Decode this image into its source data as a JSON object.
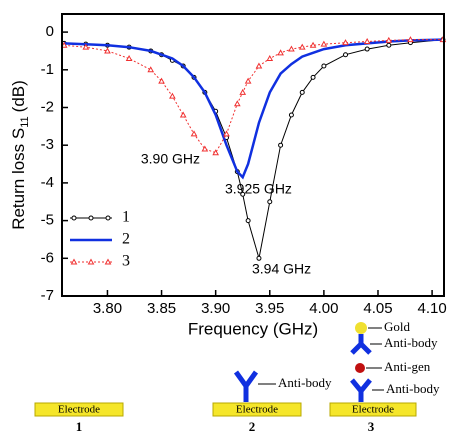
{
  "chart_data": {
    "type": "line",
    "xlabel": "Frequency (GHz)",
    "ylabel": {
      "text": "Return loss S",
      "subscript": "11",
      "suffix": "(dB)"
    },
    "x": [
      3.76,
      3.78,
      3.8,
      3.82,
      3.84,
      3.85,
      3.86,
      3.87,
      3.88,
      3.89,
      3.9,
      3.91,
      3.92,
      3.925,
      3.93,
      3.94,
      3.95,
      3.96,
      3.97,
      3.98,
      3.99,
      4.0,
      4.02,
      4.04,
      4.06,
      4.08,
      4.11
    ],
    "series": [
      {
        "name": "1",
        "color": "#000000",
        "marker": "circle",
        "dash": "none",
        "width": 1,
        "values": [
          -0.3,
          -0.32,
          -0.35,
          -0.4,
          -0.5,
          -0.6,
          -0.75,
          -0.9,
          -1.2,
          -1.6,
          -2.1,
          -2.8,
          -3.7,
          -4.3,
          -5.0,
          -6.0,
          -4.5,
          -3.0,
          -2.2,
          -1.6,
          -1.2,
          -0.9,
          -0.6,
          -0.45,
          -0.35,
          -0.28,
          -0.2
        ]
      },
      {
        "name": "2",
        "color": "#1030e0",
        "marker": "none",
        "dash": "none",
        "width": 2.5,
        "values": [
          -0.3,
          -0.32,
          -0.35,
          -0.4,
          -0.5,
          -0.6,
          -0.7,
          -0.9,
          -1.2,
          -1.6,
          -2.2,
          -3.0,
          -3.7,
          -3.85,
          -3.5,
          -2.4,
          -1.6,
          -1.1,
          -0.85,
          -0.65,
          -0.55,
          -0.45,
          -0.35,
          -0.3,
          -0.25,
          -0.22,
          -0.2
        ]
      },
      {
        "name": "3",
        "color": "#f03030",
        "marker": "triangle",
        "dash": "2 2",
        "width": 1,
        "values": [
          -0.35,
          -0.4,
          -0.5,
          -0.7,
          -1.0,
          -1.3,
          -1.7,
          -2.2,
          -2.7,
          -3.1,
          -3.2,
          -2.7,
          -1.9,
          -1.6,
          -1.3,
          -0.9,
          -0.7,
          -0.55,
          -0.45,
          -0.4,
          -0.35,
          -0.32,
          -0.28,
          -0.25,
          -0.22,
          -0.2,
          -0.2
        ]
      }
    ],
    "xlim": [
      3.758,
      4.111
    ],
    "ylim": [
      -7,
      0.48
    ],
    "xticks": [
      {
        "value": 3.8,
        "label": "3.80"
      },
      {
        "value": 3.85,
        "label": "3.85"
      },
      {
        "value": 3.9,
        "label": "3.90"
      },
      {
        "value": 3.95,
        "label": "3.95"
      },
      {
        "value": 4.0,
        "label": "4.00"
      },
      {
        "value": 4.05,
        "label": "4.05"
      },
      {
        "value": 4.1,
        "label": "4.10"
      }
    ],
    "yticks": [
      0,
      -1,
      -2,
      -3,
      -4,
      -5,
      -6,
      -7
    ],
    "annotations": [
      "3.90 GHz",
      "3.925 GHz",
      "3.94 GHz"
    ],
    "legend": "lower left"
  },
  "diagram": {
    "panels": [
      {
        "number": "1",
        "electrode": "Electrode"
      },
      {
        "number": "2",
        "electrode": "Electrode",
        "antibody": "Anti-body"
      },
      {
        "number": "3",
        "electrode": "Electrode",
        "gold": "Gold",
        "antibody_top": "Anti-body",
        "antigen": "Anti-gen",
        "antibody_bottom": "Anti-body"
      }
    ]
  }
}
